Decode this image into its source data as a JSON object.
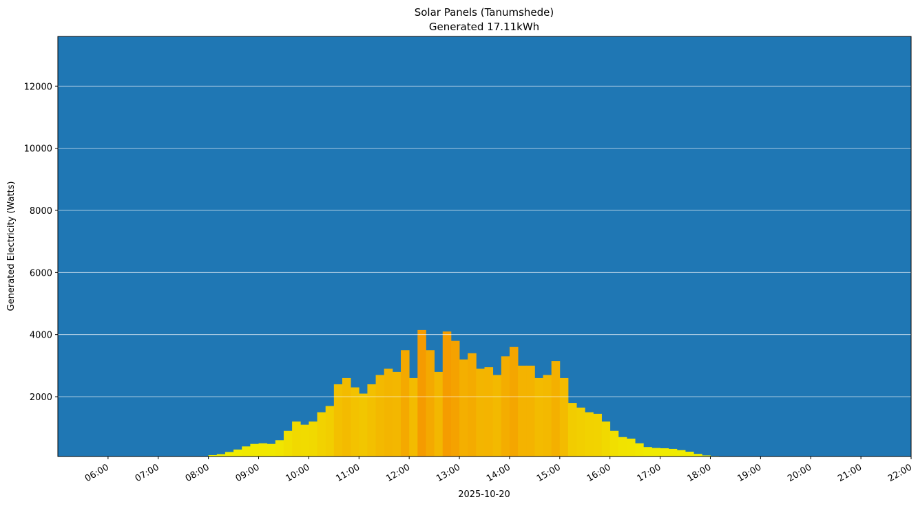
{
  "chart_data": {
    "type": "bar",
    "title": "Solar Panels (Tanumshede)",
    "subtitle": "Generated 17.11kWh",
    "ylabel": "Generated Electricity (Watts)",
    "xlabel": "2025-10-20",
    "background": "#1f77b4",
    "color_low": "#f0f000",
    "color_high": "#f59b00",
    "grid": true,
    "xlim": [
      "05:00",
      "22:00"
    ],
    "xticks": [
      "06:00",
      "07:00",
      "08:00",
      "09:00",
      "10:00",
      "11:00",
      "12:00",
      "13:00",
      "14:00",
      "15:00",
      "16:00",
      "17:00",
      "18:00",
      "19:00",
      "20:00",
      "21:00",
      "22:00"
    ],
    "ylim": [
      75,
      13600
    ],
    "yticks": [
      2000,
      4000,
      6000,
      8000,
      10000,
      12000
    ],
    "x": [
      "08:00",
      "08:10",
      "08:20",
      "08:30",
      "08:40",
      "08:50",
      "09:00",
      "09:10",
      "09:20",
      "09:30",
      "09:40",
      "09:50",
      "10:00",
      "10:10",
      "10:20",
      "10:30",
      "10:40",
      "10:50",
      "11:00",
      "11:10",
      "11:20",
      "11:30",
      "11:40",
      "11:50",
      "12:00",
      "12:10",
      "12:20",
      "12:30",
      "12:40",
      "12:50",
      "13:00",
      "13:10",
      "13:20",
      "13:30",
      "13:40",
      "13:50",
      "14:00",
      "14:10",
      "14:20",
      "14:30",
      "14:40",
      "14:50",
      "15:00",
      "15:10",
      "15:20",
      "15:30",
      "15:40",
      "15:50",
      "16:00",
      "16:10",
      "16:20",
      "16:30",
      "16:40",
      "16:50",
      "17:00",
      "17:10",
      "17:20",
      "17:30",
      "17:40",
      "17:50",
      "18:00",
      "18:10",
      "18:20",
      "18:30"
    ],
    "values": [
      120,
      150,
      220,
      300,
      400,
      480,
      500,
      480,
      600,
      900,
      1200,
      1100,
      1200,
      1500,
      1700,
      2400,
      2600,
      2300,
      2100,
      2400,
      2700,
      2900,
      2800,
      3500,
      2600,
      4150,
      3500,
      2800,
      4100,
      3800,
      3200,
      3400,
      2900,
      2950,
      2700,
      3300,
      3600,
      3000,
      3000,
      2600,
      2700,
      3150,
      2600,
      1800,
      1650,
      1500,
      1450,
      1200,
      900,
      700,
      650,
      500,
      380,
      350,
      340,
      320,
      280,
      230,
      160,
      110,
      90,
      80,
      80,
      80
    ]
  }
}
